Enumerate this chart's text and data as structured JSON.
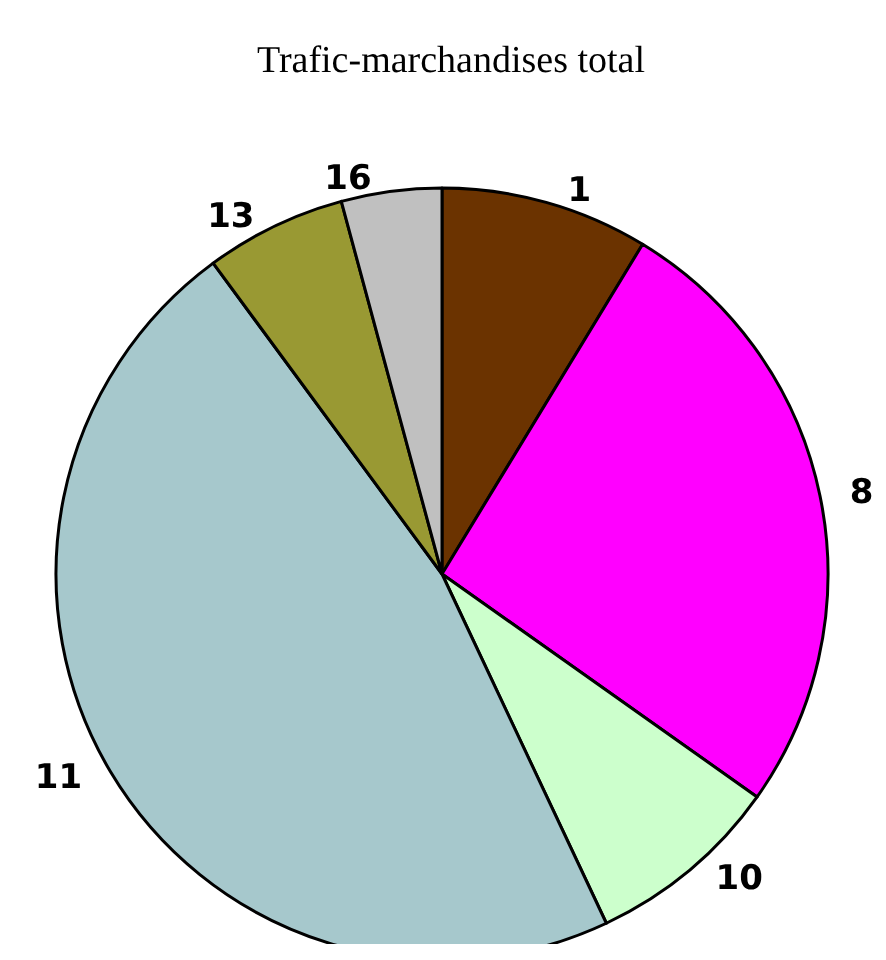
{
  "chart_data": {
    "type": "pie",
    "title": "Trafic-marchandises total",
    "categories": [
      "1",
      "8",
      "10",
      "11",
      "13",
      "16"
    ],
    "values": [
      8.7,
      26.1,
      8.2,
      46.9,
      5.9,
      4.2
    ],
    "colors": [
      "#6b3300",
      "#ff00ff",
      "#ccffcc",
      "#a6c8cc",
      "#999933",
      "#c0c0c0"
    ],
    "legend": false
  }
}
